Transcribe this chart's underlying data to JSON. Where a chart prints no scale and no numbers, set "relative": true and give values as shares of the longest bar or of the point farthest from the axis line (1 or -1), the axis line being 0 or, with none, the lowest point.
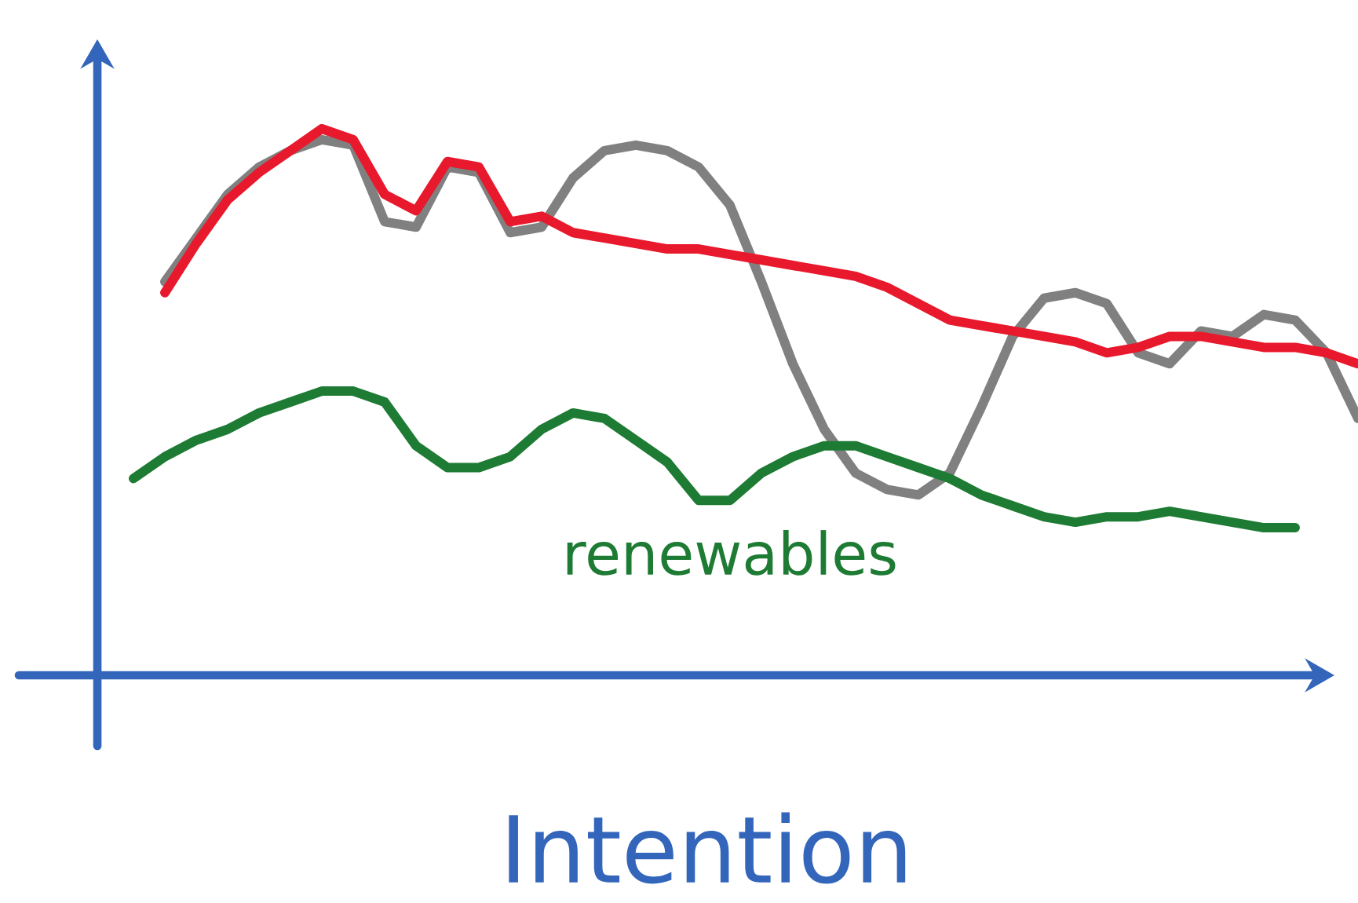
{
  "chart_data": {
    "type": "line",
    "relative": true,
    "xlabel": "Intention",
    "legend": false,
    "categories": [
      null,
      null,
      null,
      null,
      null,
      null,
      null,
      null,
      null,
      null,
      null,
      null,
      null,
      null,
      null,
      null,
      null,
      null,
      null,
      null,
      null,
      null,
      null,
      null,
      null,
      null,
      null,
      null,
      null,
      null,
      null,
      null,
      null,
      null,
      null,
      null,
      null,
      null,
      null,
      null
    ],
    "series": [
      {
        "color": "#808080",
        "values": [
          null,
          0.72,
          0.8,
          0.88,
          0.93,
          0.96,
          0.98,
          0.97,
          0.83,
          0.82,
          0.93,
          0.92,
          0.81,
          0.82,
          0.91,
          0.96,
          0.97,
          0.96,
          0.93,
          0.86,
          0.72,
          0.57,
          0.45,
          0.37,
          0.34,
          0.33,
          0.37,
          0.49,
          0.62,
          0.69,
          0.7,
          0.68,
          0.59,
          0.57,
          0.63,
          0.62,
          0.66,
          0.65,
          0.59,
          0.47
        ]
      },
      {
        "color": "#e8192c",
        "values": [
          null,
          0.7,
          0.79,
          0.87,
          0.92,
          0.96,
          1.0,
          0.98,
          0.88,
          0.85,
          0.94,
          0.93,
          0.83,
          0.84,
          0.81,
          0.8,
          0.79,
          0.78,
          0.78,
          0.77,
          0.76,
          0.75,
          0.74,
          0.73,
          0.71,
          0.68,
          0.65,
          0.64,
          0.63,
          0.62,
          0.61,
          0.59,
          0.6,
          0.62,
          0.62,
          0.61,
          0.6,
          0.6,
          0.59,
          0.57
        ]
      },
      {
        "name": "renewables",
        "color": "#1e7b34",
        "values": [
          0.36,
          0.4,
          0.43,
          0.45,
          0.48,
          0.5,
          0.52,
          0.52,
          0.5,
          0.42,
          0.38,
          0.38,
          0.4,
          0.45,
          0.48,
          0.47,
          0.43,
          0.39,
          0.32,
          0.32,
          0.37,
          0.4,
          0.42,
          0.42,
          0.4,
          0.38,
          0.36,
          0.33,
          0.31,
          0.29,
          0.28,
          0.29,
          0.29,
          0.3,
          0.29,
          0.28,
          0.27,
          0.27,
          null,
          null
        ]
      }
    ]
  }
}
